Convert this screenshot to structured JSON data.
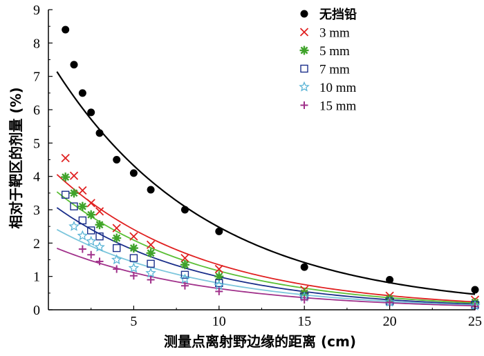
{
  "chart_data": {
    "type": "scatter",
    "title": "",
    "xlabel": "测量点离射野边缘的距离 (cm)",
    "ylabel": "相对于靶区的剂量 (%)",
    "xlim": [
      0,
      25
    ],
    "ylim": [
      0,
      9
    ],
    "xticks": [
      5,
      10,
      15,
      20,
      25
    ],
    "yticks": [
      0,
      1,
      2,
      3,
      4,
      5,
      6,
      7,
      8,
      9
    ],
    "legend_position": "top-right",
    "grid": false,
    "series": [
      {
        "name": "无挡铅",
        "marker": "circle",
        "color": "#000000",
        "points": [
          [
            1,
            8.4
          ],
          [
            1.5,
            7.35
          ],
          [
            2,
            6.5
          ],
          [
            2.5,
            5.92
          ],
          [
            3,
            5.3
          ],
          [
            4,
            4.5
          ],
          [
            5,
            4.1
          ],
          [
            6,
            3.6
          ],
          [
            8,
            3.0
          ],
          [
            10,
            2.35
          ],
          [
            15,
            1.28
          ],
          [
            20,
            0.9
          ],
          [
            25,
            0.6
          ]
        ],
        "fit": {
          "a": 7.55,
          "b": 0.1115,
          "x_start": 0.5,
          "x_end": 25,
          "color": "#000000"
        }
      },
      {
        "name": "3 mm",
        "marker": "x",
        "color": "#e02020",
        "points": [
          [
            1,
            4.55
          ],
          [
            1.5,
            4.02
          ],
          [
            2,
            3.58
          ],
          [
            2.5,
            3.2
          ],
          [
            3,
            2.95
          ],
          [
            4,
            2.45
          ],
          [
            5,
            2.2
          ],
          [
            6,
            1.95
          ],
          [
            8,
            1.55
          ],
          [
            10,
            1.22
          ],
          [
            15,
            0.6
          ],
          [
            20,
            0.42
          ],
          [
            25,
            0.3
          ]
        ],
        "fit": {
          "a": 4.3,
          "b": 0.116,
          "x_start": 0.5,
          "x_end": 25,
          "color": "#e02020"
        }
      },
      {
        "name": "5 mm",
        "marker": "asterisk",
        "color": "#3fa32a",
        "points": [
          [
            1,
            3.98
          ],
          [
            1.5,
            3.5
          ],
          [
            2,
            3.1
          ],
          [
            2.5,
            2.85
          ],
          [
            3,
            2.55
          ],
          [
            4,
            2.15
          ],
          [
            5,
            1.85
          ],
          [
            6,
            1.7
          ],
          [
            8,
            1.35
          ],
          [
            10,
            1.0
          ],
          [
            15,
            0.5
          ],
          [
            20,
            0.33
          ],
          [
            25,
            0.22
          ]
        ],
        "fit": {
          "a": 3.75,
          "b": 0.117,
          "x_start": 0.5,
          "x_end": 25,
          "color": "#5bbf35"
        }
      },
      {
        "name": "7 mm",
        "marker": "square",
        "color": "#1a2e8a",
        "points": [
          [
            1,
            3.45
          ],
          [
            1.5,
            3.1
          ],
          [
            2,
            2.68
          ],
          [
            2.5,
            2.38
          ],
          [
            3,
            2.2
          ],
          [
            4,
            1.85
          ],
          [
            5,
            1.55
          ],
          [
            6,
            1.38
          ],
          [
            8,
            1.05
          ],
          [
            10,
            0.8
          ],
          [
            15,
            0.4
          ],
          [
            20,
            0.25
          ],
          [
            25,
            0.15
          ]
        ],
        "fit": {
          "a": 3.25,
          "b": 0.119,
          "x_start": 0.5,
          "x_end": 25,
          "color": "#1a2e8a"
        }
      },
      {
        "name": "10 mm",
        "marker": "star",
        "color": "#5ab4d6",
        "points": [
          [
            1.5,
            2.5
          ],
          [
            2,
            2.22
          ],
          [
            2.5,
            2.05
          ],
          [
            3,
            1.88
          ],
          [
            4,
            1.5
          ],
          [
            5,
            1.25
          ],
          [
            6,
            1.1
          ],
          [
            8,
            0.92
          ],
          [
            10,
            0.73
          ],
          [
            15,
            0.38
          ],
          [
            20,
            0.23
          ],
          [
            25,
            0.12
          ]
        ],
        "fit": {
          "a": 2.55,
          "b": 0.116,
          "x_start": 0.5,
          "x_end": 25,
          "color": "#7cc6dc"
        }
      },
      {
        "name": "15 mm",
        "marker": "plus",
        "color": "#a0308a",
        "points": [
          [
            2,
            1.82
          ],
          [
            2.5,
            1.65
          ],
          [
            3,
            1.45
          ],
          [
            4,
            1.22
          ],
          [
            5,
            1.02
          ],
          [
            6,
            0.9
          ],
          [
            8,
            0.72
          ],
          [
            10,
            0.55
          ],
          [
            15,
            0.3
          ],
          [
            20,
            0.22
          ],
          [
            25,
            0.1
          ]
        ],
        "fit": {
          "a": 1.95,
          "b": 0.112,
          "x_start": 0.5,
          "x_end": 25,
          "color": "#a0308a"
        }
      }
    ]
  }
}
